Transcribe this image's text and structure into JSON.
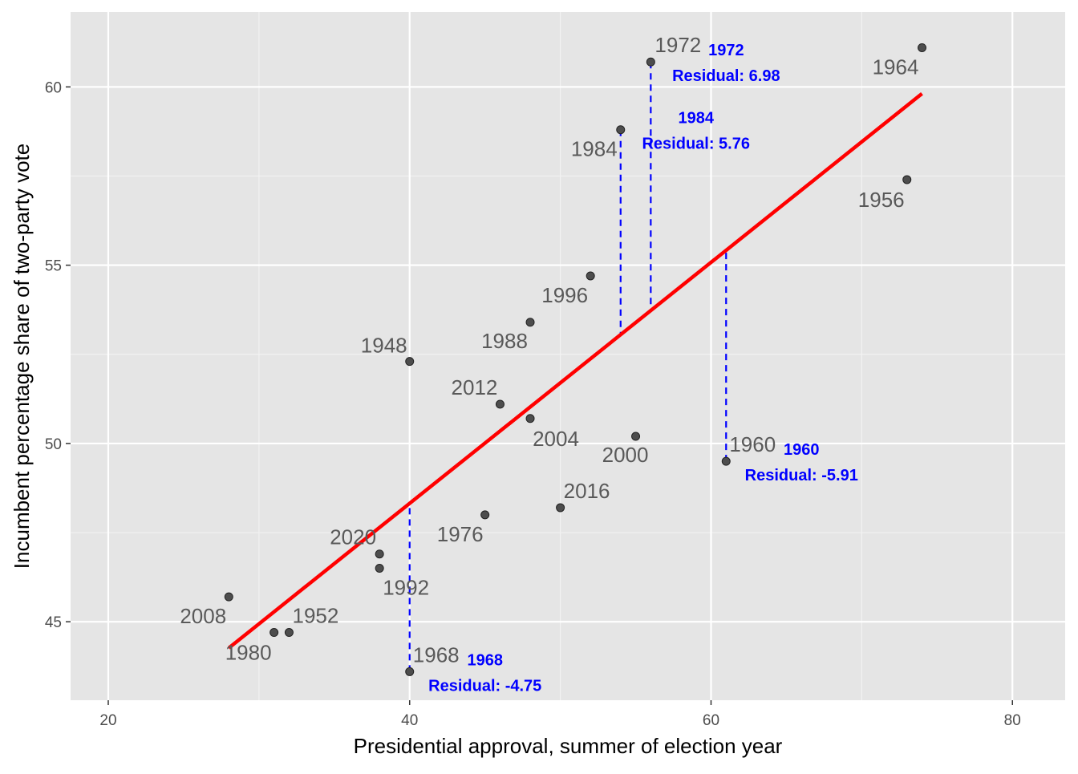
{
  "chart_data": {
    "type": "scatter",
    "title": "",
    "xlabel": "Presidential approval, summer of election year",
    "ylabel": "Incumbent percentage share of two-party vote",
    "xlim": [
      17.5,
      83.5
    ],
    "ylim": [
      42.8,
      62.1
    ],
    "xticks": [
      20,
      40,
      60,
      80
    ],
    "yticks": [
      45,
      50,
      55,
      60
    ],
    "grid": true,
    "points": [
      {
        "label": "1948",
        "x": 40,
        "y": 52.3
      },
      {
        "label": "1952",
        "x": 32,
        "y": 44.7
      },
      {
        "label": "1956",
        "x": 73,
        "y": 57.4
      },
      {
        "label": "1960",
        "x": 61,
        "y": 49.5
      },
      {
        "label": "1964",
        "x": 74,
        "y": 61.1
      },
      {
        "label": "1968",
        "x": 40,
        "y": 43.6
      },
      {
        "label": "1972",
        "x": 56,
        "y": 60.7
      },
      {
        "label": "1976",
        "x": 45,
        "y": 48.0
      },
      {
        "label": "1980",
        "x": 31,
        "y": 44.7
      },
      {
        "label": "1984",
        "x": 54,
        "y": 58.8
      },
      {
        "label": "1988",
        "x": 48,
        "y": 53.4
      },
      {
        "label": "1992",
        "x": 38,
        "y": 46.5
      },
      {
        "label": "1996",
        "x": 52,
        "y": 54.7
      },
      {
        "label": "2000",
        "x": 55,
        "y": 50.2
      },
      {
        "label": "2004",
        "x": 48,
        "y": 50.7
      },
      {
        "label": "2008",
        "x": 28,
        "y": 45.7
      },
      {
        "label": "2012",
        "x": 46,
        "y": 51.1
      },
      {
        "label": "2016",
        "x": 50,
        "y": 48.2
      },
      {
        "label": "2020",
        "x": 38,
        "y": 46.9
      }
    ],
    "fit_line": {
      "x_range": [
        28,
        74
      ],
      "intercept": 34.8,
      "slope": 0.338,
      "color": "#ff0000"
    },
    "residual_annotations": [
      {
        "year": "1972",
        "text": "Residual: 6.98"
      },
      {
        "year": "1984",
        "text": "Residual: 5.76"
      },
      {
        "year": "1960",
        "text": "Residual: -5.91"
      },
      {
        "year": "1968",
        "text": "Residual: -4.75"
      }
    ],
    "colors": {
      "panel": "#e5e5e5",
      "point": "#4d4d4d",
      "label": "#595959",
      "annotation": "#0000ff",
      "fit": "#ff0000"
    }
  }
}
